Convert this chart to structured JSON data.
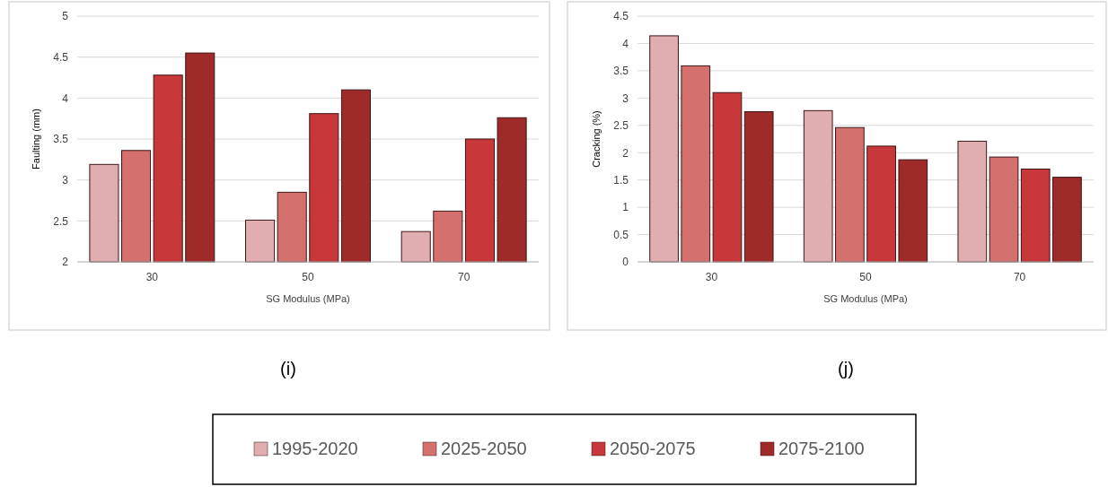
{
  "chart_data": [
    {
      "type": "bar",
      "title": "(i)",
      "xlabel": "SG Modulus (MPa)",
      "ylabel": "Faulting (mm)",
      "categories": [
        "30",
        "50",
        "70"
      ],
      "ylim": [
        2,
        5
      ],
      "yticks": [
        2,
        2.5,
        3,
        3.5,
        4,
        4.5,
        5
      ],
      "grid": "y",
      "legend": "bottom",
      "series": [
        {
          "name": "1995-2020",
          "color": "#e0aeb0",
          "values": [
            3.19,
            2.51,
            2.37
          ]
        },
        {
          "name": "2025-2050",
          "color": "#d4706e",
          "values": [
            3.36,
            2.85,
            2.62
          ]
        },
        {
          "name": "2050-2075",
          "color": "#c8383a",
          "values": [
            4.28,
            3.81,
            3.5
          ]
        },
        {
          "name": "2075-2100",
          "color": "#9e2a2a",
          "values": [
            4.55,
            4.1,
            3.76
          ]
        }
      ]
    },
    {
      "type": "bar",
      "title": "(j)",
      "xlabel": "SG Modulus (MPa)",
      "ylabel": "Cracking (%)",
      "categories": [
        "30",
        "50",
        "70"
      ],
      "ylim": [
        0,
        4.5
      ],
      "yticks": [
        0,
        0.5,
        1,
        1.5,
        2,
        2.5,
        3,
        3.5,
        4,
        4.5
      ],
      "grid": "y",
      "series": [
        {
          "color": "#e0aeb0",
          "values": [
            4.14,
            2.77,
            2.21
          ]
        },
        {
          "color": "#d4706e",
          "values": [
            3.59,
            2.46,
            1.92
          ]
        },
        {
          "color": "#c8383a",
          "values": [
            3.1,
            2.12,
            1.7
          ]
        },
        {
          "color": "#9e2a2a",
          "values": [
            2.75,
            1.87,
            1.55
          ]
        }
      ]
    }
  ]
}
